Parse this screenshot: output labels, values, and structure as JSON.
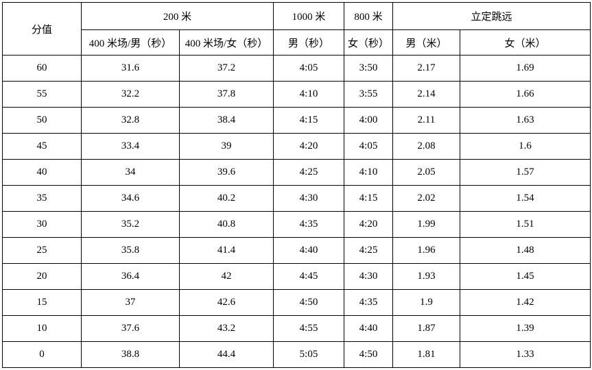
{
  "table": {
    "score_header": "分值",
    "column_groups": [
      {
        "label": "200 米",
        "subheaders": [
          "400 米场/男（秒）",
          "400 米场/女（秒）"
        ]
      },
      {
        "label": "1000 米",
        "subheaders": [
          "男（秒）"
        ]
      },
      {
        "label": "800 米",
        "subheaders": [
          "女（秒）"
        ]
      },
      {
        "label": "立定跳远",
        "subheaders": [
          "男（米）",
          "女（米）"
        ]
      }
    ],
    "rows": [
      {
        "score": "60",
        "values": [
          "31.6",
          "37.2",
          "4:05",
          "3:50",
          "2.17",
          "1.69"
        ]
      },
      {
        "score": "55",
        "values": [
          "32.2",
          "37.8",
          "4:10",
          "3:55",
          "2.14",
          "1.66"
        ]
      },
      {
        "score": "50",
        "values": [
          "32.8",
          "38.4",
          "4:15",
          "4:00",
          "2.11",
          "1.63"
        ]
      },
      {
        "score": "45",
        "values": [
          "33.4",
          "39",
          "4:20",
          "4:05",
          "2.08",
          "1.6"
        ]
      },
      {
        "score": "40",
        "values": [
          "34",
          "39.6",
          "4:25",
          "4:10",
          "2.05",
          "1.57"
        ]
      },
      {
        "score": "35",
        "values": [
          "34.6",
          "40.2",
          "4:30",
          "4:15",
          "2.02",
          "1.54"
        ]
      },
      {
        "score": "30",
        "values": [
          "35.2",
          "40.8",
          "4:35",
          "4:20",
          "1.99",
          "1.51"
        ]
      },
      {
        "score": "25",
        "values": [
          "35.8",
          "41.4",
          "4:40",
          "4:25",
          "1.96",
          "1.48"
        ]
      },
      {
        "score": "20",
        "values": [
          "36.4",
          "42",
          "4:45",
          "4:30",
          "1.93",
          "1.45"
        ]
      },
      {
        "score": "15",
        "values": [
          "37",
          "42.6",
          "4:50",
          "4:35",
          "1.9",
          "1.42"
        ]
      },
      {
        "score": "10",
        "values": [
          "37.6",
          "43.2",
          "4:55",
          "4:40",
          "1.87",
          "1.39"
        ]
      },
      {
        "score": "0",
        "values": [
          "38.8",
          "44.4",
          "5:05",
          "4:50",
          "1.81",
          "1.33"
        ]
      }
    ],
    "colors": {
      "border": "#000000",
      "background": "#ffffff",
      "text": "#000000"
    }
  }
}
